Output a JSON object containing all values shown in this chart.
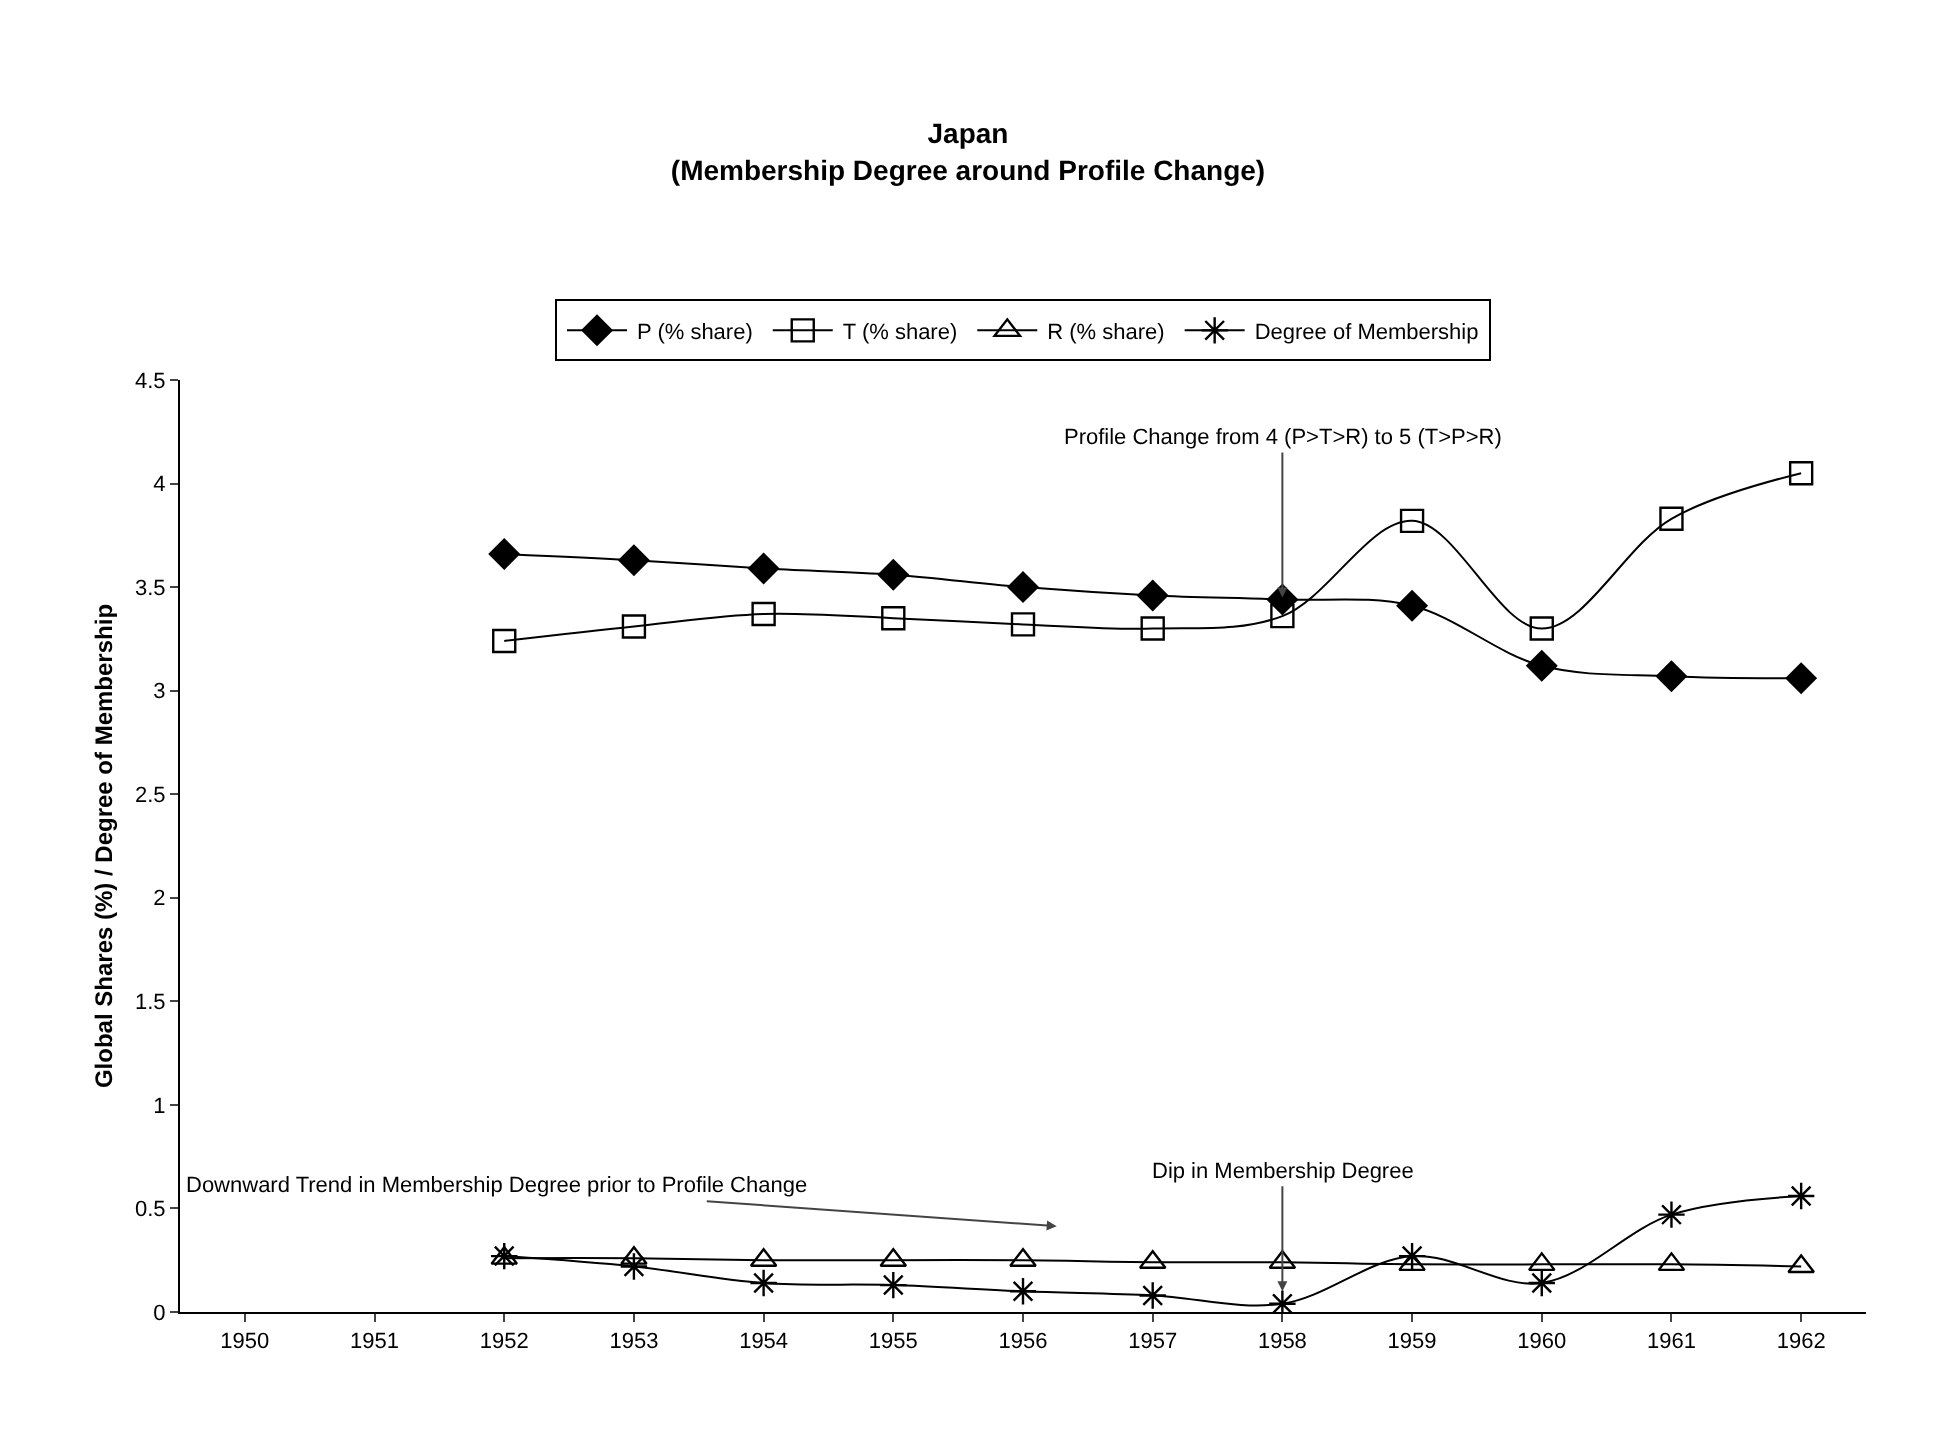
{
  "chart_data": {
    "type": "line",
    "title": "Japan\n(Membership Degree around Profile Change)",
    "ylabel": "Global Shares (%) / Degree of Membership",
    "categories": [
      "1950",
      "1951",
      "1952",
      "1953",
      "1954",
      "1955",
      "1956",
      "1957",
      "1958",
      "1959",
      "1960",
      "1961",
      "1962"
    ],
    "series": [
      {
        "name": "P (% share)",
        "color": "#000000",
        "marker": "diamond",
        "values": [
          null,
          null,
          3.66,
          3.63,
          3.59,
          3.56,
          3.5,
          3.46,
          3.44,
          3.41,
          3.12,
          3.07,
          3.06
        ]
      },
      {
        "name": "T (% share)",
        "color": "#000000",
        "marker": "square",
        "values": [
          null,
          null,
          3.24,
          3.31,
          3.37,
          3.35,
          3.32,
          3.3,
          3.36,
          3.82,
          3.3,
          3.83,
          4.05
        ]
      },
      {
        "name": "R (% share)",
        "color": "#000000",
        "marker": "triangle",
        "values": [
          null,
          null,
          0.26,
          0.26,
          0.25,
          0.25,
          0.25,
          0.24,
          0.24,
          0.23,
          0.23,
          0.23,
          0.22
        ]
      },
      {
        "name": "Degree of Membership",
        "color": "#000000",
        "marker": "cross",
        "values": [
          null,
          null,
          0.27,
          0.22,
          0.14,
          0.13,
          0.1,
          0.08,
          0.04,
          0.27,
          0.14,
          0.47,
          0.56
        ]
      }
    ],
    "ylim": [
      0,
      4.5
    ],
    "yticks": [
      {
        "value": 0,
        "label": "0"
      },
      0.5,
      1,
      1.5,
      2,
      2.5,
      3,
      3.5,
      4,
      4.5
    ],
    "grid": false,
    "legend": "top",
    "line_style": "solid",
    "annotations": [
      {
        "text": "Profile Change from 4 (P>T>R) to 5 (T>P>R)",
        "x": "1958",
        "y": 3.45
      },
      "Downward Trend in Membership Degree prior to Profile Change",
      {
        "text": "Dip in Membership Degree",
        "x": "1958",
        "y": 0.1
      }
    ]
  }
}
